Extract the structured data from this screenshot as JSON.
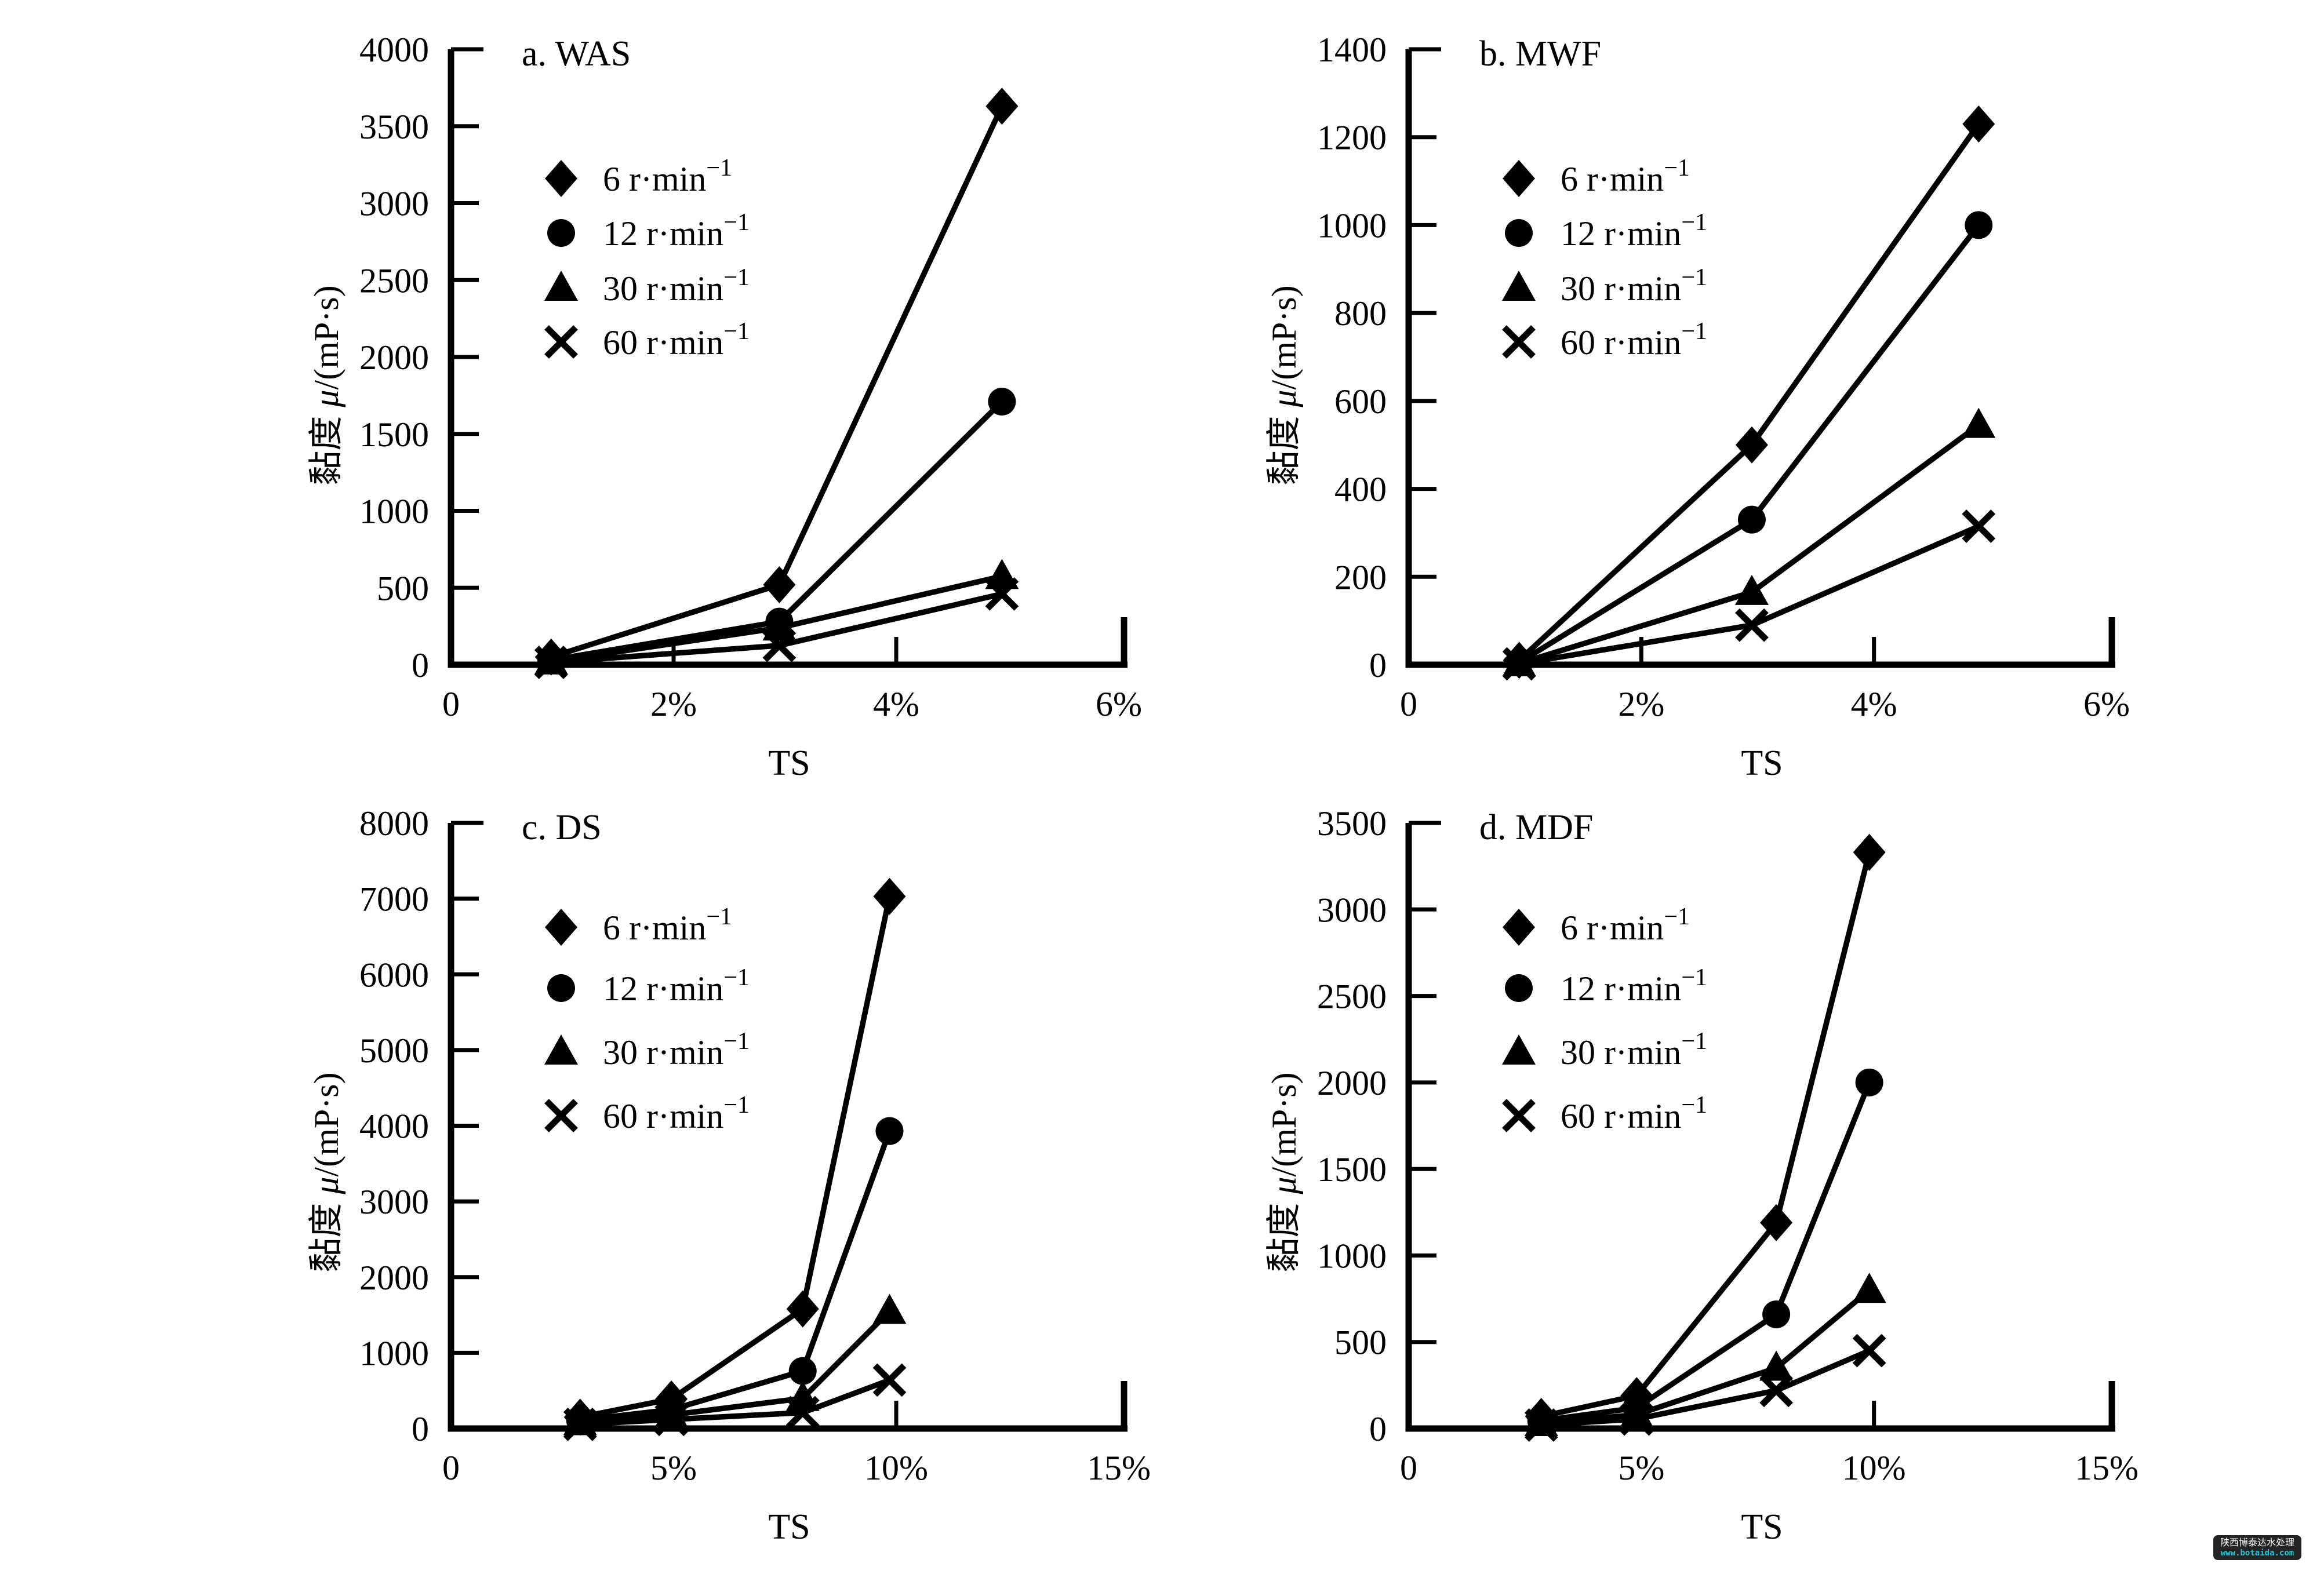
{
  "figure": {
    "background": "#ffffff",
    "ink": "#000000"
  },
  "legend": {
    "items": [
      {
        "marker": "diamond",
        "label": "6 r·min",
        "sup": "−1"
      },
      {
        "marker": "circle",
        "label": "12 r·min",
        "sup": "−1"
      },
      {
        "marker": "triangle",
        "label": "30 r·min",
        "sup": "−1"
      },
      {
        "marker": "cross",
        "label": "60 r·min",
        "sup": "−1"
      }
    ]
  },
  "chart_data": [
    {
      "id": "was",
      "type": "line",
      "title": "a. WAS",
      "xlabel": "TS",
      "ylabel": "黏度 μ/(mP·s)",
      "xlim": [
        0,
        6
      ],
      "ylim": [
        0,
        4000
      ],
      "grid": false,
      "legend_position": "upper-left-inside",
      "x_ticks": [
        {
          "v": 0,
          "label": "0"
        },
        {
          "v": 2,
          "label": "2%"
        },
        {
          "v": 4,
          "label": "4%"
        },
        {
          "v": 6,
          "label": "6%"
        }
      ],
      "y_ticks": [
        "0",
        "500",
        "1000",
        "1500",
        "2000",
        "2500",
        "3000",
        "3500",
        "4000"
      ],
      "series": [
        {
          "name": "6 r·min⁻¹",
          "marker": "diamond",
          "x": [
            0.9,
            2.95,
            4.95
          ],
          "y": [
            50,
            520,
            3630
          ]
        },
        {
          "name": "12 r·min⁻¹",
          "marker": "circle",
          "x": [
            0.9,
            2.95,
            4.95
          ],
          "y": [
            30,
            280,
            1710
          ]
        },
        {
          "name": "30 r·min⁻¹",
          "marker": "triangle",
          "x": [
            0.9,
            2.95,
            4.95
          ],
          "y": [
            20,
            240,
            575
          ]
        },
        {
          "name": "60 r·min⁻¹",
          "marker": "cross",
          "x": [
            0.9,
            2.95,
            4.95
          ],
          "y": [
            15,
            125,
            460
          ]
        }
      ]
    },
    {
      "id": "mwf",
      "type": "line",
      "title": "b. MWF",
      "xlabel": "TS",
      "ylabel": "黏度 μ/(mP·s)",
      "xlim": [
        0,
        6
      ],
      "ylim": [
        0,
        1400
      ],
      "grid": false,
      "legend_position": "upper-left-inside",
      "x_ticks": [
        {
          "v": 0,
          "label": "0"
        },
        {
          "v": 2,
          "label": "2%"
        },
        {
          "v": 4,
          "label": "4%"
        },
        {
          "v": 6,
          "label": "6%"
        }
      ],
      "y_ticks": [
        "0",
        "200",
        "400",
        "600",
        "800",
        "1000",
        "1200",
        "1400"
      ],
      "series": [
        {
          "name": "6 r·min⁻¹",
          "marker": "diamond",
          "x": [
            0.95,
            2.95,
            4.9
          ],
          "y": [
            10,
            500,
            1230
          ]
        },
        {
          "name": "12 r·min⁻¹",
          "marker": "circle",
          "x": [
            0.95,
            2.95,
            4.9
          ],
          "y": [
            5,
            330,
            1000
          ]
        },
        {
          "name": "30 r·min⁻¹",
          "marker": "triangle",
          "x": [
            0.95,
            2.95,
            4.9
          ],
          "y": [
            3,
            165,
            545
          ]
        },
        {
          "name": "60 r·min⁻¹",
          "marker": "cross",
          "x": [
            0.95,
            2.95,
            4.9
          ],
          "y": [
            2,
            90,
            315
          ]
        }
      ]
    },
    {
      "id": "ds",
      "type": "line",
      "title": "c. DS",
      "xlabel": "TS",
      "ylabel": "黏度 μ/(mP·s)",
      "xlim": [
        0,
        15
      ],
      "ylim": [
        0,
        8000
      ],
      "grid": false,
      "legend_position": "upper-left-inside",
      "x_ticks": [
        {
          "v": 0,
          "label": "0"
        },
        {
          "v": 5,
          "label": "5%"
        },
        {
          "v": 10,
          "label": "10%"
        },
        {
          "v": 15,
          "label": "15%"
        }
      ],
      "y_ticks": [
        "0",
        "1000",
        "2000",
        "3000",
        "4000",
        "5000",
        "6000",
        "7000",
        "8000"
      ],
      "series": [
        {
          "name": "6 r·min⁻¹",
          "marker": "diamond",
          "x": [
            2.9,
            4.95,
            7.9,
            9.85
          ],
          "y": [
            150,
            390,
            1580,
            7030
          ]
        },
        {
          "name": "12 r·min⁻¹",
          "marker": "circle",
          "x": [
            2.9,
            4.95,
            7.9,
            9.85
          ],
          "y": [
            110,
            250,
            760,
            3930
          ]
        },
        {
          "name": "30 r·min⁻¹",
          "marker": "triangle",
          "x": [
            2.9,
            4.95,
            7.9,
            9.85
          ],
          "y": [
            80,
            180,
            400,
            1550
          ]
        },
        {
          "name": "60 r·min⁻¹",
          "marker": "cross",
          "x": [
            2.9,
            4.95,
            7.9,
            9.85
          ],
          "y": [
            55,
            120,
            210,
            640
          ]
        }
      ]
    },
    {
      "id": "mdf",
      "type": "line",
      "title": "d. MDF",
      "xlabel": "TS",
      "ylabel": "黏度 μ/(mP·s)",
      "xlim": [
        0,
        15
      ],
      "ylim": [
        0,
        3500
      ],
      "grid": false,
      "legend_position": "upper-left-inside",
      "x_ticks": [
        {
          "v": 0,
          "label": "0"
        },
        {
          "v": 5,
          "label": "5%"
        },
        {
          "v": 10,
          "label": "10%"
        },
        {
          "v": 15,
          "label": "15%"
        }
      ],
      "y_ticks": [
        "0",
        "500",
        "1000",
        "1500",
        "2000",
        "2500",
        "3000",
        "3500"
      ],
      "series": [
        {
          "name": "6 r·min⁻¹",
          "marker": "diamond",
          "x": [
            2.85,
            4.9,
            7.9,
            9.9
          ],
          "y": [
            70,
            190,
            1190,
            3330
          ]
        },
        {
          "name": "12 r·min⁻¹",
          "marker": "circle",
          "x": [
            2.85,
            4.9,
            7.9,
            9.9
          ],
          "y": [
            45,
            120,
            660,
            2000
          ]
        },
        {
          "name": "30 r·min⁻¹",
          "marker": "triangle",
          "x": [
            2.85,
            4.9,
            7.9,
            9.9
          ],
          "y": [
            30,
            80,
            350,
            800
          ]
        },
        {
          "name": "60 r·min⁻¹",
          "marker": "cross",
          "x": [
            2.85,
            4.9,
            7.9,
            9.9
          ],
          "y": [
            20,
            55,
            220,
            450
          ]
        }
      ]
    }
  ],
  "watermark": {
    "line1": "陕西博泰达水处理",
    "line2": "www.botaida.com",
    "bg": "#111111",
    "color1": "#ffffff",
    "color2": "#20c5d8"
  }
}
